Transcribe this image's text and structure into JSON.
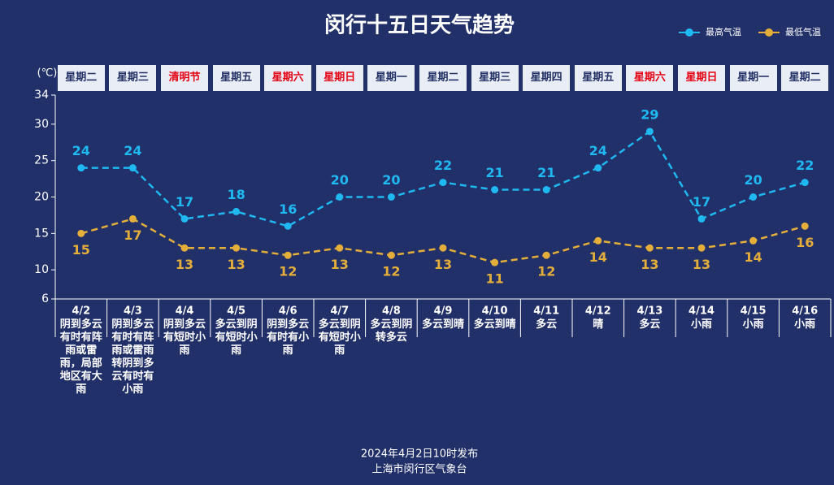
{
  "chart_data": {
    "type": "line",
    "title": "闵行十五日天气趋势",
    "y_label": "(℃)",
    "categories": [
      "4/2",
      "4/3",
      "4/4",
      "4/5",
      "4/6",
      "4/7",
      "4/8",
      "4/9",
      "4/10",
      "4/11",
      "4/12",
      "4/13",
      "4/14",
      "4/15",
      "4/16"
    ],
    "day_labels": [
      "星期二",
      "星期三",
      "清明节",
      "星期五",
      "星期六",
      "星期日",
      "星期一",
      "星期二",
      "星期三",
      "星期四",
      "星期五",
      "星期六",
      "星期日",
      "星期一",
      "星期二"
    ],
    "day_label_colors": [
      "#233166",
      "#233166",
      "#e60012",
      "#233166",
      "#e60012",
      "#e60012",
      "#233166",
      "#233166",
      "#233166",
      "#233166",
      "#233166",
      "#e60012",
      "#e60012",
      "#233166",
      "#233166"
    ],
    "weather": [
      "阴到多云有时有阵雨或雷雨，局部地区有大雨",
      "阴到多云有时有阵雨或雷雨转阴到多云有时有小雨",
      "阴到多云有短时小雨",
      "多云到阴有短时小雨",
      "阴到多云有时有小雨",
      "多云到阴有短时小雨",
      "多云到阴转多云",
      "多云到晴",
      "多云到晴",
      "多云",
      "晴",
      "多云",
      "小雨",
      "小雨",
      "小雨"
    ],
    "series": [
      {
        "name": "最高气温",
        "color": "#1fb8f0",
        "values": [
          24,
          24,
          17,
          18,
          16,
          20,
          20,
          22,
          21,
          21,
          24,
          29,
          17,
          20,
          22
        ]
      },
      {
        "name": "最低气温",
        "color": "#e3ae3a",
        "values": [
          15,
          17,
          13,
          13,
          12,
          13,
          12,
          13,
          11,
          12,
          14,
          13,
          13,
          14,
          16
        ]
      }
    ],
    "ylim": [
      6,
      34
    ],
    "yticks": [
      6,
      10,
      15,
      20,
      25,
      30,
      34
    ],
    "footer": [
      "2024年4月2日10时发布",
      "上海市闵行区气象台"
    ]
  }
}
